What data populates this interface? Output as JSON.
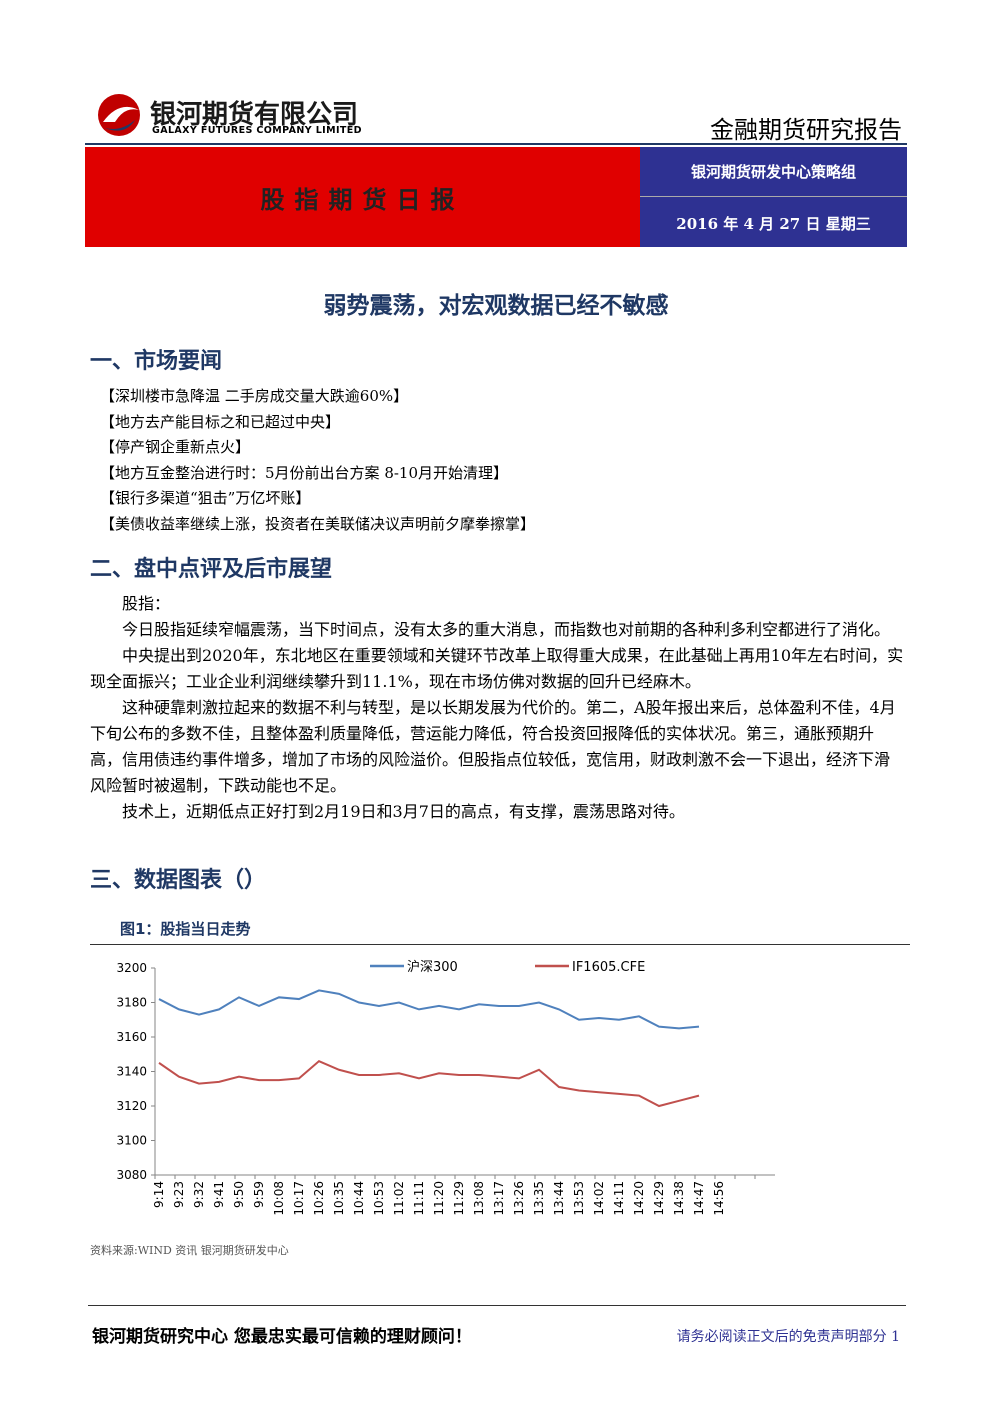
{
  "header": {
    "company": "银河期货有限公司",
    "company_en": "GALAXY FUTURES COMPANY LIMITED",
    "report_type": "金融期货研究报告",
    "report_name": "股指期货日报",
    "team": "银河期货研发中心策略组",
    "date": "2016 年 4 月 27 日  星期三"
  },
  "headline": "弱势震荡，对宏观数据已经不敏感",
  "sections": [
    {
      "heading": "一、市场要闻",
      "items": [
        "【深圳楼市急降温 二手房成交量大跌逾60%】",
        "【地方去产能目标之和已超过中央】",
        "【停产钢企重新点火】",
        "【地方互金整治进行时：5月份前出台方案 8-10月开始清理】",
        "【银行多渠道“狙击”万亿坏账】",
        "【美债收益率继续上涨，投资者在美联储决议声明前夕摩拳擦掌】"
      ]
    },
    {
      "heading": "二、盘中点评及后市展望",
      "paragraphs": [
        "股指：",
        "今日股指延续窄幅震荡，当下时间点，没有太多的重大消息，而指数也对前期的各种利多利空都进行了消化。",
        "中央提出到2020年，东北地区在重要领域和关键环节改革上取得重大成果，在此基础上再用10年左右时间，实现全面振兴；工业企业利润继续攀升到11.1%，现在市场仿佛对数据的回升已经麻木。",
        "这种硬靠刺激拉起来的数据不利与转型，是以长期发展为代价的。第二，A股年报出来后，总体盈利不佳，4月下旬公布的多数不佳，且整体盈利质量降低，营运能力降低，符合投资回报降低的实体状况。第三，通胀预期升高，信用债违约事件增多，增加了市场的风险溢价。但股指点位较低，宽信用，财政刺激不会一下退出，经济下滑风险暂时被遏制，下跌动能也不足。",
        "技术上，近期低点正好打到2月19日和3月7日的高点，有支撑，震荡思路对待。"
      ]
    },
    {
      "heading": "三、数据图表（）"
    }
  ],
  "chart_data": {
    "type": "line",
    "title": "图1：股指当日走势",
    "source": "资料来源:WIND 资讯   银河期货研发中心",
    "categories": [
      "9:14",
      "9:23",
      "9:32",
      "9:41",
      "9:50",
      "9:59",
      "10:08",
      "10:17",
      "10:26",
      "10:35",
      "10:44",
      "10:53",
      "11:02",
      "11:11",
      "11:20",
      "11:29",
      "13:08",
      "13:17",
      "13:26",
      "13:35",
      "13:44",
      "13:53",
      "14:02",
      "14:11",
      "14:20",
      "14:29",
      "14:38",
      "14:47",
      "14:56",
      null,
      null
    ],
    "series": [
      {
        "name": "沪深300",
        "color": "#4f81bd",
        "values": [
          3182,
          3176,
          3173,
          3176,
          3183,
          3178,
          3183,
          3182,
          3187,
          3185,
          3180,
          3178,
          3180,
          3176,
          3178,
          3176,
          3179,
          3178,
          3178,
          3180,
          3176,
          3170,
          3171,
          3170,
          3172,
          3166,
          3165,
          3166,
          null,
          null,
          null
        ]
      },
      {
        "name": "IF1605.CFE",
        "color": "#c0504d",
        "values": [
          3145,
          3137,
          3133,
          3134,
          3137,
          3135,
          3135,
          3136,
          3146,
          3141,
          3138,
          3138,
          3139,
          3136,
          3139,
          3138,
          3138,
          3137,
          3136,
          3141,
          3131,
          3129,
          3128,
          3127,
          3126,
          3120,
          3123,
          3126,
          null,
          null,
          null
        ]
      }
    ],
    "ylim": [
      3080,
      3200
    ],
    "yticks": [
      3080,
      3100,
      3120,
      3140,
      3160,
      3180,
      3200
    ],
    "legend": "top"
  },
  "footer": {
    "slogan": "银河期货研究中心  您最忠实最可信赖的理财顾问！",
    "disclaimer": "请务必阅读正文后的免责声明部分",
    "page": "1"
  }
}
